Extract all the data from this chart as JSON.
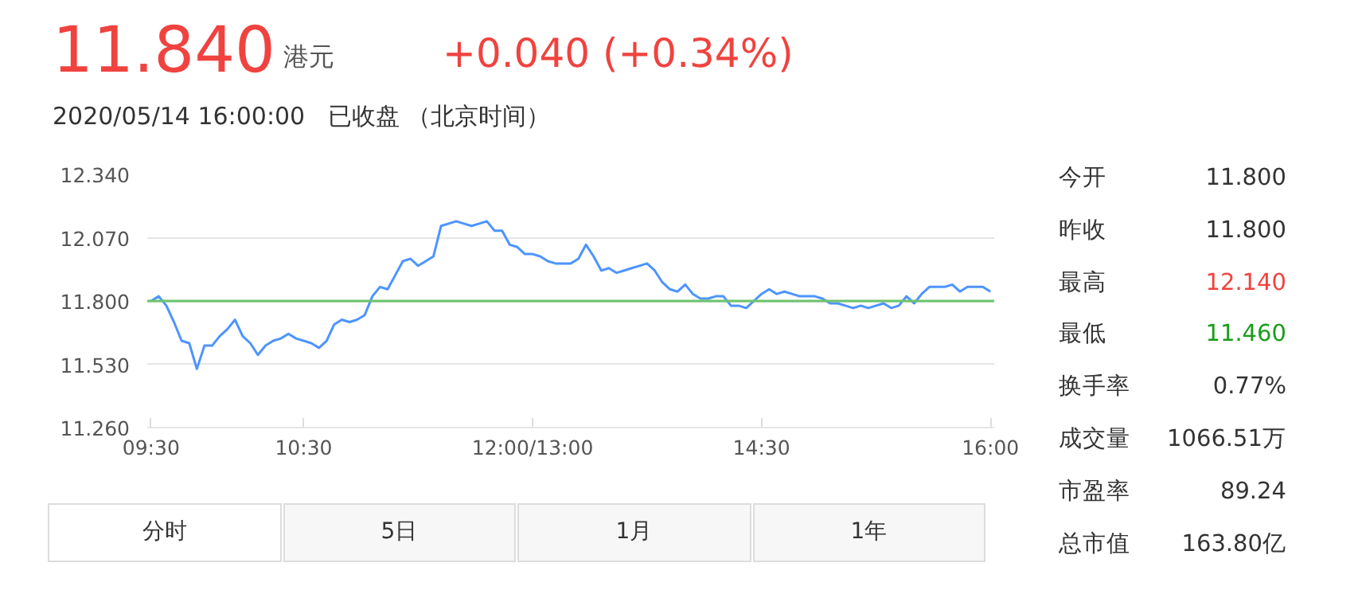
{
  "chart_data": [
    {
      "type": "line",
      "title": "11.840",
      "subtitle": "2020/05/14 16:00:00   已收盘 （北京时间）",
      "annotations": [
        "港元",
        "+0.040 (+0.34%)",
        "分时",
        "5日",
        "1月",
        "1年"
      ],
      "categories": [
        "09:30",
        null,
        null,
        null,
        null,
        null,
        null,
        null,
        null,
        null,
        null,
        null,
        null,
        null,
        null,
        null,
        null,
        null,
        null,
        null,
        "10:30",
        null,
        null,
        null,
        null,
        null,
        null,
        null,
        null,
        null,
        null,
        null,
        null,
        null,
        null,
        null,
        null,
        null,
        null,
        null,
        null,
        null,
        null,
        null,
        null,
        null,
        null,
        null,
        null,
        null,
        "12:00/13:00",
        null,
        null,
        null,
        null,
        null,
        null,
        null,
        null,
        null,
        null,
        null,
        null,
        null,
        null,
        null,
        null,
        null,
        null,
        null,
        null,
        null,
        null,
        null,
        null,
        null,
        null,
        null,
        null,
        null,
        "14:30",
        null,
        null,
        null,
        null,
        null,
        null,
        null,
        null,
        null,
        null,
        null,
        null,
        null,
        null,
        null,
        null,
        null,
        null,
        null,
        null,
        null,
        null,
        null,
        null,
        null,
        null,
        null,
        null,
        null,
        "16:00"
      ],
      "series": [
        {
          "color": "#4d94ff",
          "values": [
            11.8,
            11.82,
            11.78,
            11.71,
            11.63,
            11.62,
            11.51,
            11.61,
            11.61,
            11.65,
            11.68,
            11.72,
            11.65,
            11.62,
            11.57,
            11.61,
            11.63,
            11.64,
            11.66,
            11.64,
            11.63,
            11.62,
            11.6,
            11.63,
            11.7,
            11.72,
            11.71,
            11.72,
            11.74,
            11.82,
            11.86,
            11.85,
            11.91,
            11.97,
            11.98,
            11.95,
            11.97,
            11.99,
            12.12,
            12.13,
            12.14,
            12.13,
            12.12,
            12.13,
            12.14,
            12.1,
            12.1,
            12.04,
            12.03,
            12.0,
            12.0,
            11.99,
            11.97,
            11.96,
            11.96,
            11.96,
            11.98,
            12.04,
            11.99,
            11.93,
            11.94,
            11.92,
            11.93,
            11.94,
            11.95,
            11.96,
            11.93,
            11.88,
            11.85,
            11.84,
            11.87,
            11.83,
            11.81,
            11.81,
            11.82,
            11.82,
            11.78,
            11.78,
            11.77,
            11.8,
            11.83,
            11.85,
            11.83,
            11.84,
            11.83,
            11.82,
            11.82,
            11.82,
            11.81,
            11.79,
            11.79,
            11.78,
            11.77,
            11.78,
            11.77,
            11.78,
            11.79,
            11.77,
            11.78,
            11.82,
            11.79,
            11.83,
            11.86,
            11.86,
            11.86,
            11.87,
            11.84,
            11.86,
            11.86,
            11.86,
            11.84
          ]
        }
      ],
      "ylim": [
        11.26,
        12.34
      ],
      "yticks": [
        {
          "value": 11.26,
          "label": "11.260"
        },
        {
          "value": 11.53,
          "label": "11.530"
        },
        {
          "value": 11.8,
          "label": "11.800"
        },
        {
          "value": 12.07,
          "label": "12.070"
        },
        {
          "value": 12.34,
          "label": "12.340"
        }
      ],
      "ref_lines": [
        {
          "axis": "y",
          "value": 11.8,
          "color": "#6cc46c"
        }
      ],
      "grid": "y",
      "marker": "none",
      "line_style": "solid"
    },
    {
      "type": "other",
      "annotations": [
        "今开",
        "11.800",
        "昨收",
        "11.800",
        "最高",
        "12.140",
        "最低",
        "11.460",
        "换手率",
        "0.77%",
        "成交量",
        "1066.51万",
        "市盈率",
        "89.24",
        "总市值",
        "163.80亿"
      ],
      "colors": [
        "#333333",
        "#333333",
        "#333333",
        "#333333",
        "#333333",
        "#f0433f",
        "#333333",
        "#1a9c1a",
        "#333333",
        "#333333",
        "#333333",
        "#333333",
        "#333333",
        "#333333",
        "#333333",
        "#333333"
      ]
    }
  ]
}
